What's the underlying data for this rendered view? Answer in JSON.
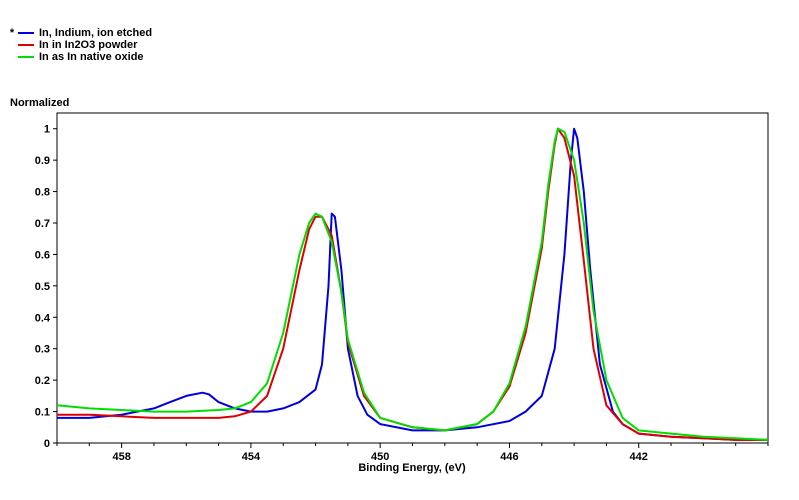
{
  "legend": {
    "marker": "*",
    "items": [
      {
        "label": "In, Indium, ion etched",
        "color": "#0000dd"
      },
      {
        "label": "In in In2O3 powder",
        "color": "#dd0000"
      },
      {
        "label": "In as In native oxide",
        "color": "#00dd00"
      }
    ]
  },
  "chart_data": {
    "type": "line",
    "title": "",
    "xlabel": "Binding Energy, (eV)",
    "ylabel": "Normalized",
    "xlim": [
      460.0,
      438.0
    ],
    "ylim": [
      0,
      1.05
    ],
    "x_reversed": true,
    "xticks": [
      458,
      454,
      450,
      446,
      442
    ],
    "yticks": [
      0,
      0.1,
      0.2,
      0.3,
      0.4,
      0.5,
      0.6,
      0.7,
      0.8,
      0.9,
      1
    ],
    "ytick_labels": [
      "0",
      "0.1",
      "0.2",
      "0.3",
      "0.4",
      "0.5",
      "0.6",
      "0.7",
      "0.8",
      "0.9",
      "1"
    ],
    "grid": false,
    "legend_position": "top-left",
    "series": [
      {
        "name": "In, Indium, ion etched",
        "color": "#0000dd",
        "x": [
          460,
          459,
          458,
          457,
          456.5,
          456,
          455.5,
          455.3,
          455,
          454.5,
          454,
          453.5,
          453,
          452.5,
          452,
          451.8,
          451.6,
          451.5,
          451.4,
          451.2,
          451,
          450.7,
          450.4,
          450,
          449,
          448,
          447,
          446,
          445.5,
          445,
          444.6,
          444.3,
          444.1,
          444.0,
          443.9,
          443.7,
          443.5,
          443.2,
          442.8,
          442.5,
          442,
          441,
          440,
          439,
          438
        ],
        "y": [
          0.08,
          0.08,
          0.09,
          0.11,
          0.13,
          0.15,
          0.16,
          0.155,
          0.13,
          0.11,
          0.1,
          0.1,
          0.11,
          0.13,
          0.17,
          0.25,
          0.5,
          0.73,
          0.72,
          0.55,
          0.3,
          0.15,
          0.09,
          0.06,
          0.04,
          0.04,
          0.05,
          0.07,
          0.1,
          0.15,
          0.3,
          0.6,
          0.9,
          1.0,
          0.97,
          0.8,
          0.55,
          0.25,
          0.1,
          0.06,
          0.03,
          0.02,
          0.015,
          0.01,
          0.01
        ]
      },
      {
        "name": "In in In2O3 powder",
        "color": "#dd0000",
        "x": [
          460,
          459,
          458,
          457,
          456,
          455,
          454.5,
          454,
          453.5,
          453,
          452.5,
          452.2,
          452,
          451.8,
          451.5,
          451.2,
          451,
          450.5,
          450,
          449,
          448,
          447,
          446.5,
          446,
          445.5,
          445,
          444.8,
          444.6,
          444.5,
          444.3,
          444.0,
          443.7,
          443.4,
          443,
          442.5,
          442,
          441,
          440,
          439,
          438
        ],
        "y": [
          0.09,
          0.09,
          0.085,
          0.08,
          0.08,
          0.08,
          0.085,
          0.1,
          0.15,
          0.3,
          0.55,
          0.68,
          0.72,
          0.72,
          0.66,
          0.48,
          0.32,
          0.15,
          0.08,
          0.05,
          0.04,
          0.06,
          0.1,
          0.18,
          0.35,
          0.62,
          0.8,
          0.95,
          1.0,
          0.97,
          0.85,
          0.58,
          0.3,
          0.12,
          0.06,
          0.03,
          0.02,
          0.015,
          0.01,
          0.01
        ]
      },
      {
        "name": "In as In native oxide",
        "color": "#00dd00",
        "x": [
          460,
          459,
          458,
          457,
          456,
          455,
          454.5,
          454,
          453.5,
          453,
          452.5,
          452.2,
          452,
          451.8,
          451.5,
          451.2,
          451,
          450.5,
          450,
          449,
          448,
          447,
          446.5,
          446,
          445.5,
          445,
          444.8,
          444.6,
          444.5,
          444.3,
          444.0,
          443.7,
          443.4,
          443,
          442.5,
          442,
          441,
          440,
          439,
          438
        ],
        "y": [
          0.12,
          0.11,
          0.105,
          0.1,
          0.1,
          0.105,
          0.11,
          0.13,
          0.19,
          0.35,
          0.6,
          0.7,
          0.73,
          0.72,
          0.64,
          0.48,
          0.33,
          0.16,
          0.08,
          0.05,
          0.04,
          0.06,
          0.1,
          0.19,
          0.37,
          0.64,
          0.82,
          0.96,
          1.0,
          0.99,
          0.9,
          0.7,
          0.42,
          0.2,
          0.08,
          0.04,
          0.03,
          0.02,
          0.015,
          0.01
        ]
      }
    ]
  }
}
